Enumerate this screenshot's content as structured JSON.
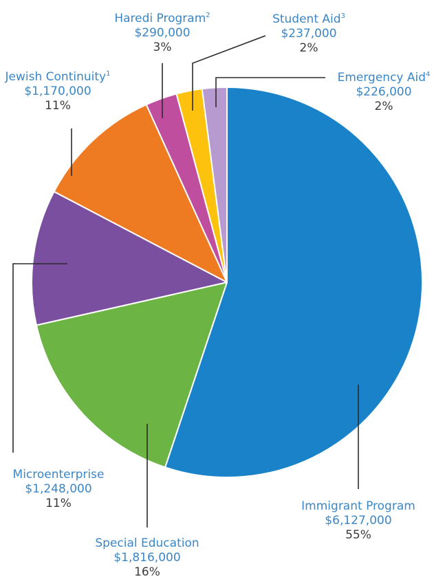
{
  "chart_data": {
    "type": "pie",
    "slices": [
      {
        "name": "Immigrant Program",
        "note": "",
        "amount": "$6,127,000",
        "percent_label": "55%",
        "value": 6127000,
        "color": "#1a82c9"
      },
      {
        "name": "Special Education",
        "note": "",
        "amount": "$1,816,000",
        "percent_label": "16%",
        "value": 1816000,
        "color": "#6cb444"
      },
      {
        "name": "Microenterprise",
        "note": "",
        "amount": "$1,248,000",
        "percent_label": "11%",
        "value": 1248000,
        "color": "#7a4fa0"
      },
      {
        "name": "Jewish Continuity",
        "note": "1",
        "amount": "$1,170,000",
        "percent_label": "11%",
        "value": 1170000,
        "color": "#ee7b22"
      },
      {
        "name": "Haredi Program",
        "note": "2",
        "amount": "$290,000",
        "percent_label": "3%",
        "value": 290000,
        "color": "#c04e9e"
      },
      {
        "name": "Student Aid",
        "note": "3",
        "amount": "$237,000",
        "percent_label": "2%",
        "value": 237000,
        "color": "#fcc20e"
      },
      {
        "name": "Emergency Aid",
        "note": "4",
        "amount": "$226,000",
        "percent_label": "2%",
        "value": 226000,
        "color": "#b69ad0"
      }
    ],
    "start_angle": "12 o'clock",
    "direction": "clockwise",
    "slice_border_color": "#ffffff"
  }
}
